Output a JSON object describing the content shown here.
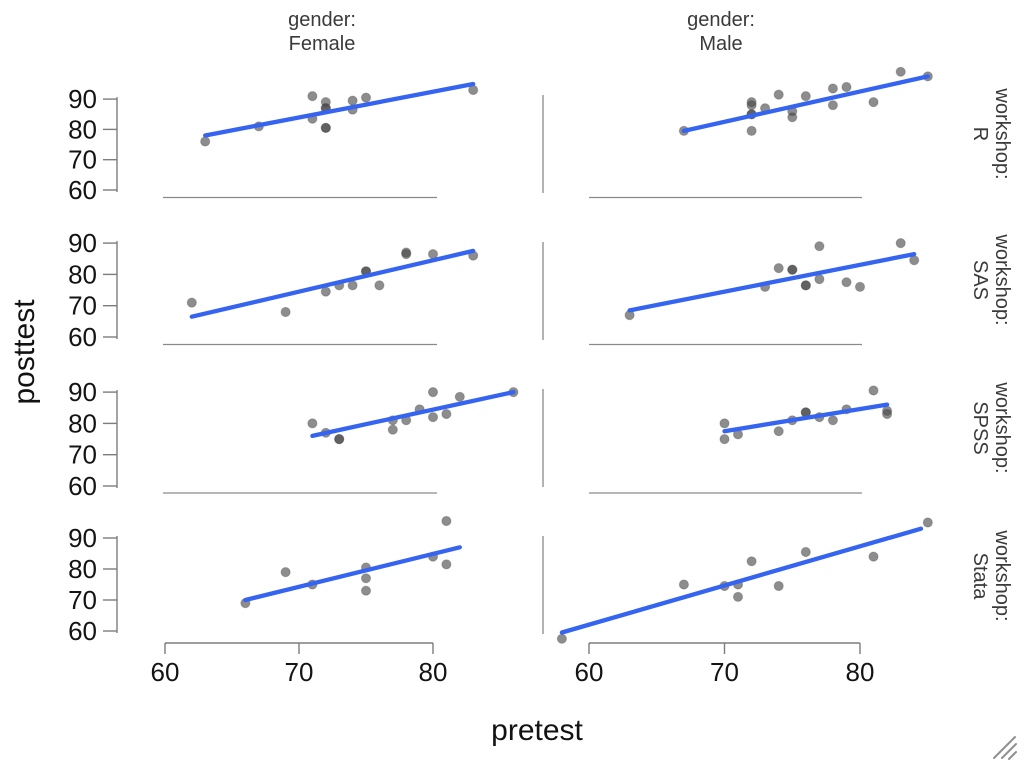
{
  "chart_data": {
    "type": "scatter",
    "xlabel": "pretest",
    "ylabel": "posttest",
    "x_ticks": [
      60,
      70,
      80
    ],
    "y_ticks": [
      60,
      70,
      80,
      90
    ],
    "xlim": [
      57,
      86
    ],
    "ylim": [
      57,
      100
    ],
    "grid": false,
    "legend": false,
    "facet": {
      "col_variable": "gender",
      "row_variable": "workshop",
      "col_strips": [
        {
          "line1": "gender:",
          "line2": "Female"
        },
        {
          "line1": "gender:",
          "line2": "Male"
        }
      ],
      "row_strips": [
        {
          "line1": "workshop:",
          "line2": "R"
        },
        {
          "line1": "workshop:",
          "line2": "SAS"
        },
        {
          "line1": "workshop:",
          "line2": "SPSS"
        },
        {
          "line1": "workshop:",
          "line2": "Stata"
        }
      ]
    },
    "style": {
      "point_color": "#474747",
      "point_opacity": 0.62,
      "fit_line_color": "#3564f0",
      "axis_color": "#8a8a8a",
      "tick_text_color": "#141414"
    },
    "panels": [
      {
        "gender": "Female",
        "workshop": "R",
        "points": [
          [
            63,
            76
          ],
          [
            67,
            81
          ],
          [
            71,
            91
          ],
          [
            71,
            83.5
          ],
          [
            72,
            89
          ],
          [
            72,
            87
          ],
          [
            72,
            87
          ],
          [
            72,
            80.5
          ],
          [
            72,
            80.5
          ],
          [
            74,
            89.5
          ],
          [
            74,
            86.5
          ],
          [
            75,
            90.5
          ],
          [
            83,
            93
          ]
        ],
        "fit_line": {
          "x": [
            63,
            83
          ],
          "y": [
            78,
            95
          ]
        }
      },
      {
        "gender": "Male",
        "workshop": "R",
        "points": [
          [
            67,
            79.5
          ],
          [
            72,
            89
          ],
          [
            72,
            88
          ],
          [
            72,
            85
          ],
          [
            72,
            85
          ],
          [
            72,
            79.5
          ],
          [
            73,
            87
          ],
          [
            74,
            91.5
          ],
          [
            75,
            86
          ],
          [
            75,
            84
          ],
          [
            76,
            91
          ],
          [
            78,
            93.5
          ],
          [
            78,
            88
          ],
          [
            79,
            94
          ],
          [
            81,
            89
          ],
          [
            83,
            99
          ],
          [
            85,
            97.5
          ]
        ],
        "fit_line": {
          "x": [
            67,
            85
          ],
          "y": [
            79.5,
            97.5
          ]
        }
      },
      {
        "gender": "Female",
        "workshop": "SAS",
        "points": [
          [
            62,
            71
          ],
          [
            69,
            68
          ],
          [
            72,
            74.5
          ],
          [
            73,
            76.5
          ],
          [
            74,
            76.5
          ],
          [
            75,
            81
          ],
          [
            75,
            81
          ],
          [
            76,
            76.5
          ],
          [
            78,
            87
          ],
          [
            78,
            86.5
          ],
          [
            80,
            86.5
          ],
          [
            83,
            86
          ]
        ],
        "fit_line": {
          "x": [
            62,
            83
          ],
          "y": [
            66.5,
            87.5
          ]
        }
      },
      {
        "gender": "Male",
        "workshop": "SAS",
        "points": [
          [
            63,
            67
          ],
          [
            73,
            76
          ],
          [
            74,
            82
          ],
          [
            75,
            81.5
          ],
          [
            75,
            81.5
          ],
          [
            76,
            76.5
          ],
          [
            76,
            76.5
          ],
          [
            77,
            89
          ],
          [
            77,
            78.5
          ],
          [
            79,
            77.5
          ],
          [
            80,
            76
          ],
          [
            83,
            90
          ],
          [
            84,
            84.5
          ]
        ],
        "fit_line": {
          "x": [
            63,
            84
          ],
          "y": [
            68.5,
            86.5
          ]
        }
      },
      {
        "gender": "Female",
        "workshop": "SPSS",
        "points": [
          [
            71,
            80
          ],
          [
            72,
            77
          ],
          [
            73,
            75
          ],
          [
            73,
            75
          ],
          [
            77,
            81
          ],
          [
            77,
            78
          ],
          [
            78,
            81
          ],
          [
            79,
            84.5
          ],
          [
            80,
            90
          ],
          [
            80,
            82
          ],
          [
            81,
            83
          ],
          [
            82,
            88.5
          ],
          [
            86,
            90
          ]
        ],
        "fit_line": {
          "x": [
            71,
            86
          ],
          "y": [
            76,
            90
          ]
        }
      },
      {
        "gender": "Male",
        "workshop": "SPSS",
        "points": [
          [
            70,
            80
          ],
          [
            70,
            75
          ],
          [
            71,
            76.5
          ],
          [
            74,
            77.5
          ],
          [
            75,
            81
          ],
          [
            76,
            83.5
          ],
          [
            76,
            83.5
          ],
          [
            77,
            82
          ],
          [
            78,
            81
          ],
          [
            79,
            84.5
          ],
          [
            81,
            90.5
          ],
          [
            82,
            84
          ],
          [
            82,
            83
          ]
        ],
        "fit_line": {
          "x": [
            70,
            82
          ],
          "y": [
            77.5,
            86
          ]
        }
      },
      {
        "gender": "Female",
        "workshop": "Stata",
        "points": [
          [
            66,
            69
          ],
          [
            69,
            79
          ],
          [
            71,
            75
          ],
          [
            75,
            80.5
          ],
          [
            75,
            77
          ],
          [
            75,
            73
          ],
          [
            80,
            84
          ],
          [
            81,
            95.5
          ],
          [
            81,
            81.5
          ]
        ],
        "fit_line": {
          "x": [
            66,
            82
          ],
          "y": [
            70,
            87
          ]
        }
      },
      {
        "gender": "Male",
        "workshop": "Stata",
        "points": [
          [
            58,
            57.5
          ],
          [
            67,
            75
          ],
          [
            70,
            74.5
          ],
          [
            71,
            75
          ],
          [
            71,
            71
          ],
          [
            72,
            82.5
          ],
          [
            74,
            74.5
          ],
          [
            76,
            85.5
          ],
          [
            81,
            84
          ],
          [
            85,
            95
          ]
        ],
        "fit_line": {
          "x": [
            58,
            84.5
          ],
          "y": [
            59.5,
            93
          ]
        }
      }
    ]
  },
  "icons": {
    "resize_handle": "diagonal-resize-grip"
  }
}
